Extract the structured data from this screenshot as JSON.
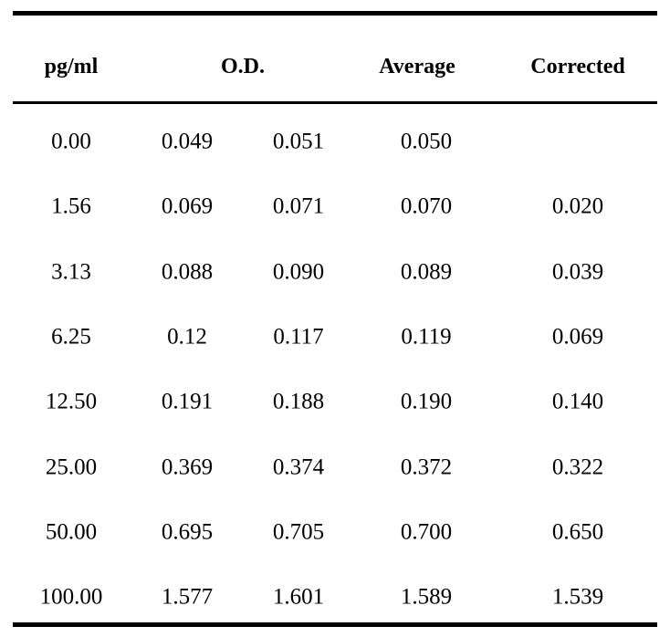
{
  "chart_data": {
    "type": "table",
    "headers": [
      "pg/ml",
      "O.D.",
      "Average",
      "Corrected"
    ],
    "rows": [
      {
        "concentration": "0.00",
        "od1": "0.049",
        "od2": "0.051",
        "average": "0.050",
        "corrected": ""
      },
      {
        "concentration": "1.56",
        "od1": "0.069",
        "od2": "0.071",
        "average": "0.070",
        "corrected": "0.020"
      },
      {
        "concentration": "3.13",
        "od1": "0.088",
        "od2": "0.090",
        "average": "0.089",
        "corrected": "0.039"
      },
      {
        "concentration": "6.25",
        "od1": "0.12",
        "od2": "0.117",
        "average": "0.119",
        "corrected": "0.069"
      },
      {
        "concentration": "12.50",
        "od1": "0.191",
        "od2": "0.188",
        "average": "0.190",
        "corrected": "0.140"
      },
      {
        "concentration": "25.00",
        "od1": "0.369",
        "od2": "0.374",
        "average": "0.372",
        "corrected": "0.322"
      },
      {
        "concentration": "50.00",
        "od1": "0.695",
        "od2": "0.705",
        "average": "0.700",
        "corrected": "0.650"
      },
      {
        "concentration": "100.00",
        "od1": "1.577",
        "od2": "1.601",
        "average": "1.589",
        "corrected": "1.539"
      }
    ]
  }
}
